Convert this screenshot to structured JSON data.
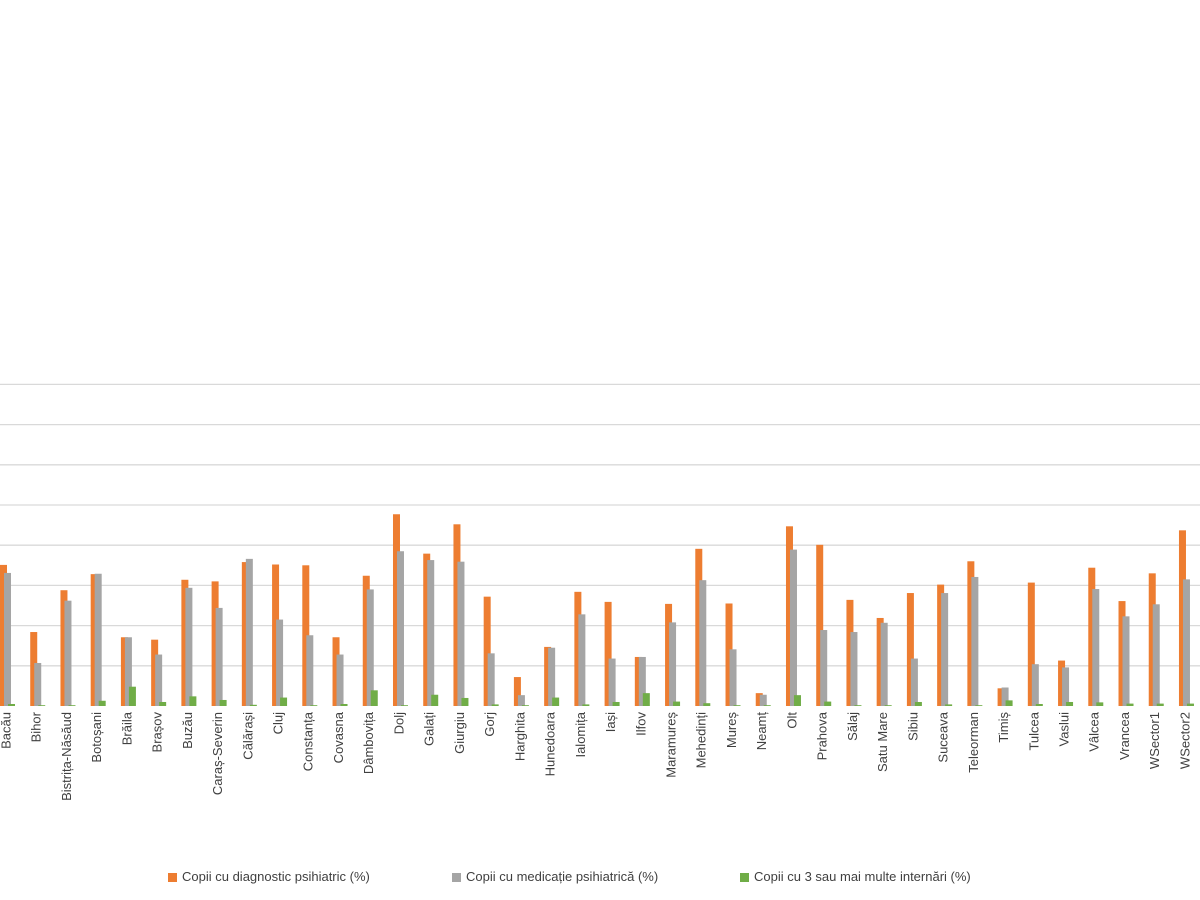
{
  "colors": {
    "diagnostic": "#ED7D31",
    "medication": "#A5A5A5",
    "hospitalizations": "#70AD47",
    "grid": "#D9D9D9",
    "label": "#404040"
  },
  "legend": {
    "items": [
      {
        "label": "Copii cu diagnostic psihiatric (%)",
        "color": "#ED7D31"
      },
      {
        "label": "Copii cu medicație psihiatrică (%)",
        "color": "#A5A5A5"
      },
      {
        "label": "Copii cu 3 sau mai multe internări (%)",
        "color": "#70AD47"
      }
    ]
  },
  "chart_data": {
    "type": "bar",
    "title": "",
    "xlabel": "",
    "ylabel": "",
    "ylim": [
      0,
      85
    ],
    "grid": true,
    "legend_position": "bottom",
    "categories": [
      "Bacău",
      "Bihor",
      "Bistrița-Năsăud",
      "Botoșani",
      "Brăila",
      "Brașov",
      "Buzău",
      "Caraș-Severin",
      "Călărași",
      "Cluj",
      "Constanța",
      "Covasna",
      "Dâmbovița",
      "Dolj",
      "Galați",
      "Giurgiu",
      "Gorj",
      "Harghita",
      "Hunedoara",
      "Ialomița",
      "Iași",
      "Ilfov",
      "Maramureș",
      "Mehedinți",
      "Mureș",
      "Neamț",
      "Olt",
      "Prahova",
      "Sălaj",
      "Satu Mare",
      "Sibiu",
      "Suceava",
      "Teleorman",
      "Timiș",
      "Tulcea",
      "Vaslui",
      "Vâlcea",
      "Vrancea",
      "WSector1",
      "WSector2"
    ],
    "series": [
      {
        "name": "Copii cu diagnostic psihiatric (%)",
        "values": [
          35.1,
          18.4,
          28.8,
          32.8,
          17.1,
          16.5,
          31.4,
          31.0,
          35.8,
          35.2,
          35.0,
          17.1,
          32.4,
          47.7,
          37.9,
          45.2,
          27.2,
          7.2,
          14.7,
          28.4,
          25.9,
          12.2,
          25.4,
          39.1,
          25.5,
          3.2,
          44.7,
          40.1,
          26.4,
          21.9,
          28.1,
          30.2,
          36.0,
          4.4,
          30.7,
          11.3,
          34.4,
          26.1,
          33.0,
          43.7
        ]
      },
      {
        "name": "Copii cu medicație psihiatrică (%)",
        "values": [
          33.1,
          10.7,
          26.2,
          32.9,
          17.1,
          12.8,
          29.4,
          24.4,
          36.6,
          21.5,
          17.6,
          12.8,
          29.0,
          38.5,
          36.3,
          35.9,
          13.1,
          2.7,
          14.5,
          22.8,
          11.8,
          12.2,
          20.8,
          31.3,
          14.1,
          2.8,
          38.9,
          18.9,
          18.4,
          20.7,
          11.8,
          28.1,
          32.1,
          4.6,
          10.4,
          9.6,
          29.1,
          22.3,
          25.3,
          31.5
        ]
      },
      {
        "name": "Copii cu 3 sau mai multe internări (%)",
        "values": [
          0.5,
          0.0,
          0.0,
          1.3,
          4.8,
          1.0,
          2.4,
          1.5,
          0.3,
          2.1,
          0.2,
          0.5,
          3.9,
          0.2,
          2.8,
          2.0,
          0.4,
          0.2,
          2.1,
          0.4,
          1.0,
          3.2,
          1.1,
          0.7,
          0.1,
          0.2,
          2.7,
          1.1,
          0.1,
          0.0,
          1.0,
          0.4,
          0.1,
          1.4,
          0.5,
          1.0,
          0.9,
          0.6,
          0.6,
          0.6
        ]
      }
    ]
  }
}
